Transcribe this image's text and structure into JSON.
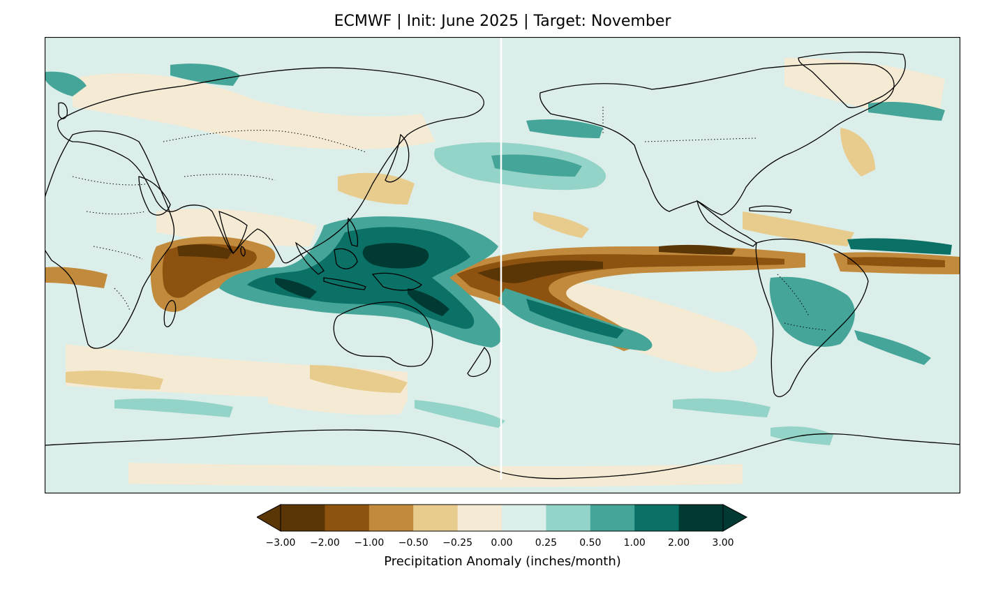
{
  "title": "ECMWF | Init: June 2025 | Target: November",
  "colorbar": {
    "label": "Precipitation Anomaly (inches/month)",
    "ticks": [
      "−3.00",
      "−2.00",
      "−1.00",
      "−0.50",
      "−0.25",
      "0.00",
      "0.25",
      "0.50",
      "1.00",
      "2.00",
      "3.00"
    ],
    "colors": [
      "#5a3505",
      "#8d520f",
      "#c18a3c",
      "#e8cc8e",
      "#f5ebd4",
      "#dceeea",
      "#94d4c8",
      "#45a598",
      "#0b7166",
      "#013a32"
    ],
    "extend": "both"
  },
  "map": {
    "projection": "PlateCarree, central longitude 180",
    "ocean_background": "#dceeea",
    "land_outline": "#000000",
    "seam_line": "#ffffff"
  }
}
